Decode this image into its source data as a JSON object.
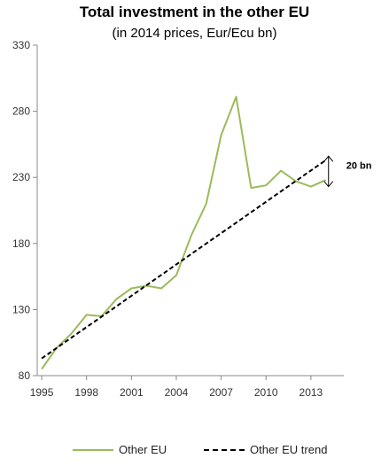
{
  "title": "Total investment in the other EU",
  "subtitle": "(in 2014 prices, Eur/Ecu bn)",
  "chart_data": {
    "type": "line",
    "title": "Total investment in the other EU",
    "subtitle": "(in 2014 prices, Eur/Ecu bn)",
    "xlabel": "",
    "ylabel": "",
    "x": [
      1995,
      1996,
      1997,
      1998,
      1999,
      2000,
      2001,
      2002,
      2003,
      2004,
      2005,
      2006,
      2007,
      2008,
      2009,
      2010,
      2011,
      2012,
      2013,
      2014
    ],
    "x_ticks": [
      1995,
      1998,
      2001,
      2004,
      2007,
      2010,
      2013
    ],
    "x_tick_labels": [
      "1995",
      "1998",
      "2001",
      "2004",
      "2007",
      "2010",
      "2013"
    ],
    "xlim": [
      1994.7,
      2015.2
    ],
    "y_ticks": [
      80,
      130,
      180,
      230,
      280,
      330
    ],
    "y_tick_labels": [
      "80",
      "130",
      "180",
      "230",
      "280",
      "330"
    ],
    "ylim": [
      80,
      330
    ],
    "grid": false,
    "legend_position": "bottom",
    "series": [
      {
        "name": "Other EU",
        "style": "solid",
        "color": "#9bbb59",
        "values": [
          85,
          101,
          112,
          126,
          125,
          138,
          146,
          148,
          146,
          156,
          186,
          210,
          262,
          291,
          222,
          224,
          235,
          227,
          223,
          228
        ]
      },
      {
        "name": "Other EU trend",
        "style": "dashed",
        "color": "#000000",
        "values": [
          93,
          100.9,
          108.8,
          116.7,
          124.6,
          132.5,
          140.4,
          148.3,
          156.2,
          164.1,
          172,
          179.9,
          187.8,
          195.7,
          203.6,
          211.5,
          219.4,
          227.3,
          235.2,
          243
        ]
      }
    ],
    "annotations": [
      {
        "text": "20 bn",
        "x": 2014,
        "y_from": 223,
        "y_to": 246
      }
    ]
  }
}
